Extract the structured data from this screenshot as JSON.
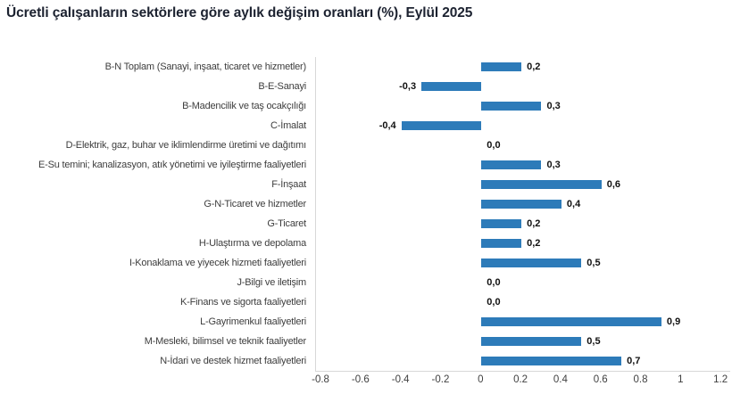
{
  "title": "Ücretli çalışanların sektörlere göre aylık değişim oranları (%), Eylül 2025",
  "chart_data": {
    "type": "bar",
    "orientation": "horizontal",
    "title": "Ücretli çalışanların sektörlere göre aylık değişim oranları (%), Eylül 2025",
    "categories": [
      "B-N Toplam (Sanayi, inşaat, ticaret ve hizmetler)",
      "B-E-Sanayi",
      "B-Madencilik ve taş ocakçılığı",
      "C-İmalat",
      "D-Elektrik, gaz, buhar ve iklimlendirme üretimi ve dağıtımı",
      "E-Su temini; kanalizasyon, atık yönetimi ve iyileştirme faaliyetleri",
      "F-İnşaat",
      "G-N-Ticaret ve hizmetler",
      "G-Ticaret",
      "H-Ulaştırma ve depolama",
      "I-Konaklama ve yiyecek hizmeti faaliyetleri",
      "J-Bilgi ve iletişim",
      "K-Finans ve sigorta faaliyetleri",
      "L-Gayrimenkul faaliyetleri",
      "M-Mesleki, bilimsel ve teknik faaliyetler",
      "N-İdari ve destek hizmet faaliyetleri"
    ],
    "values": [
      0.2,
      -0.3,
      0.3,
      -0.4,
      0.0,
      0.3,
      0.6,
      0.4,
      0.2,
      0.2,
      0.5,
      0.0,
      0.0,
      0.9,
      0.5,
      0.7
    ],
    "value_labels": [
      "0,2",
      "-0,3",
      "0,3",
      "-0,4",
      "0,0",
      "0,3",
      "0,6",
      "0,4",
      "0,2",
      "0,2",
      "0,5",
      "0,0",
      "0,0",
      "0,9",
      "0,5",
      "0,7"
    ],
    "xlabel": "",
    "ylabel": "",
    "xlim": [
      -0.827,
      1.244
    ],
    "x_ticks": [
      -0.8,
      -0.6,
      -0.4,
      -0.2,
      0,
      0.2,
      0.4,
      0.6,
      0.8,
      1,
      1.2
    ],
    "x_tick_labels": [
      "-0.8",
      "-0.6",
      "-0.4",
      "-0.2",
      "0",
      "0.2",
      "0.4",
      "0.6",
      "0.8",
      "1",
      "1.2"
    ],
    "grid": false,
    "legend": false,
    "colors": {
      "bar": "#2D7BB9",
      "axis_line": "#d8d8d8",
      "category_text": "#3d3d3d",
      "tick_text": "#404040",
      "value_text": "#111111",
      "title_text": "#1c2230"
    }
  }
}
